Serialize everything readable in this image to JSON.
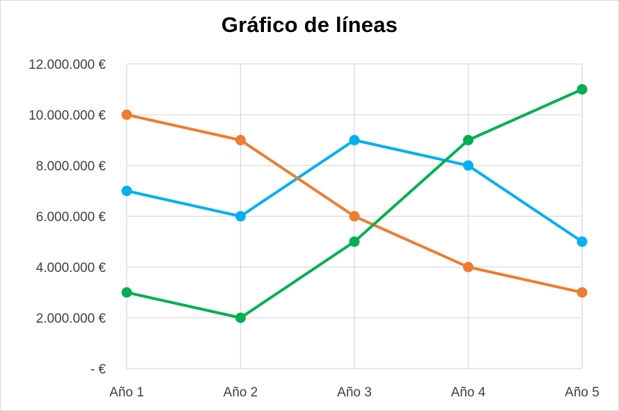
{
  "chart_data": {
    "type": "line",
    "title": "Gráfico de líneas",
    "categories": [
      "Año 1",
      "Año 2",
      "Año 3",
      "Año 4",
      "Año 5"
    ],
    "ylim": [
      0,
      12000000
    ],
    "y_ticks": [
      0,
      2000000,
      4000000,
      6000000,
      8000000,
      10000000,
      12000000
    ],
    "y_tick_labels": [
      "-  €",
      "2.000.000 €",
      "4.000.000 €",
      "6.000.000 €",
      "8.000.000 €",
      "10.000.000 €",
      "12.000.000 €"
    ],
    "grid": {
      "horizontal": true,
      "vertical": true
    },
    "series": [
      {
        "color": "#00b0f0",
        "values": [
          7000000,
          6000000,
          9000000,
          8000000,
          5000000
        ]
      },
      {
        "color": "#ed7d31",
        "values": [
          10000000,
          9000000,
          6000000,
          4000000,
          3000000
        ]
      },
      {
        "color": "#00b050",
        "values": [
          3000000,
          2000000,
          5000000,
          9000000,
          11000000
        ]
      }
    ]
  }
}
